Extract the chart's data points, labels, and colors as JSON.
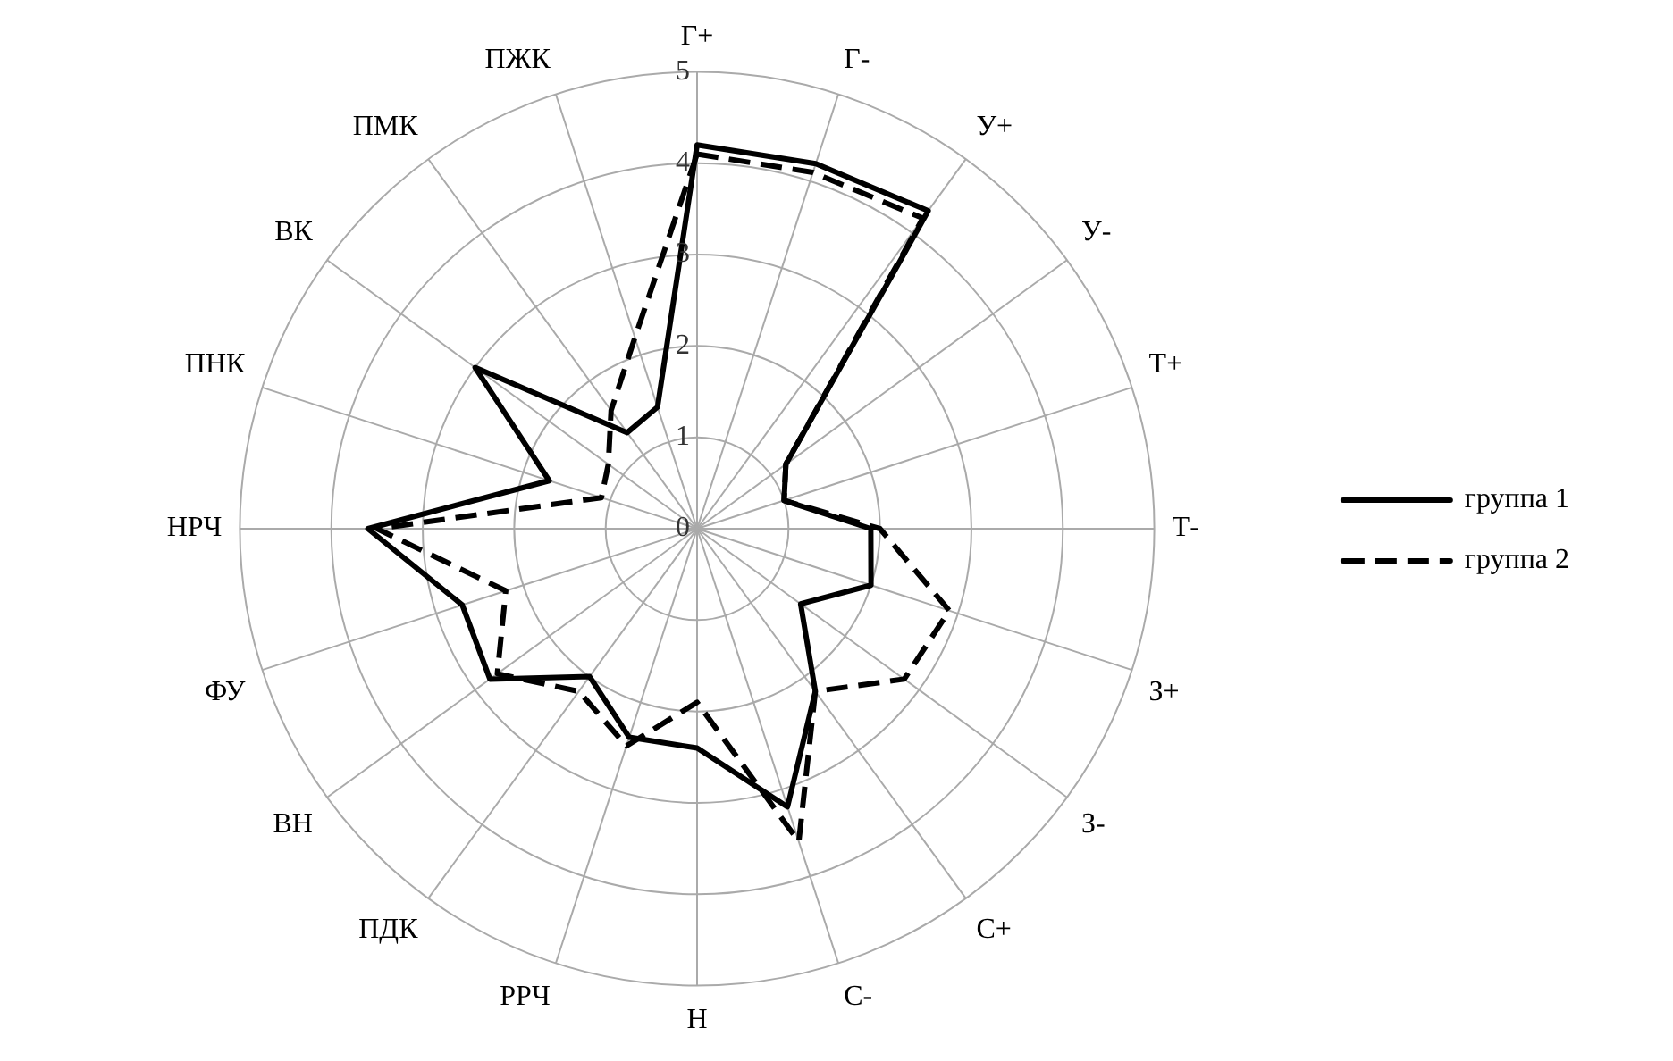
{
  "chart_data": {
    "type": "radar",
    "categories": [
      "Г+",
      "Г-",
      "У+",
      "У-",
      "Т+",
      "Т-",
      "З+",
      "З-",
      "С+",
      "С-",
      "Н",
      "РРЧ",
      "ПДК",
      "ВН",
      "ФУ",
      "НРЧ",
      "ПНК",
      "ВК",
      "ПМК",
      "ПЖК"
    ],
    "series": [
      {
        "name": "группа 1",
        "color": "#000000",
        "line_style": "solid",
        "values": [
          4.2,
          4.2,
          4.3,
          1.2,
          1.0,
          1.9,
          2.0,
          1.4,
          2.2,
          3.2,
          2.4,
          2.4,
          2.0,
          2.8,
          2.7,
          3.6,
          1.7,
          3.0,
          1.3,
          1.4
        ]
      },
      {
        "name": "группа 2",
        "color": "#000000",
        "line_style": "dashed",
        "values": [
          4.1,
          4.1,
          4.2,
          1.2,
          1.0,
          2.0,
          2.9,
          2.8,
          2.2,
          3.6,
          1.9,
          2.5,
          2.2,
          2.7,
          2.2,
          3.5,
          1.1,
          1.2,
          1.6,
          2.2
        ]
      }
    ],
    "ylim": [
      0,
      5
    ],
    "yticks": [
      0,
      1,
      2,
      3,
      4,
      5
    ],
    "grid": true,
    "legend": "right",
    "marker": "none"
  }
}
